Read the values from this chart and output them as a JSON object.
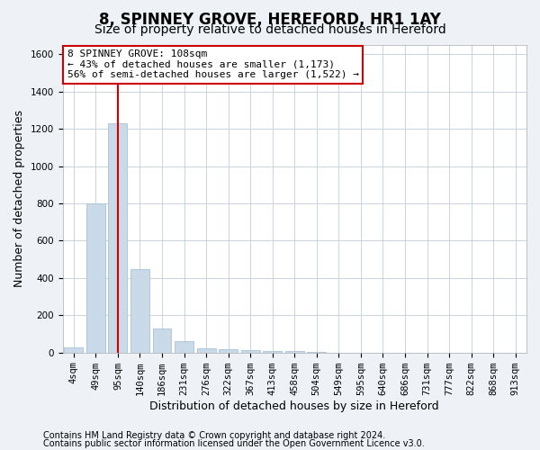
{
  "title": "8, SPINNEY GROVE, HEREFORD, HR1 1AY",
  "subtitle": "Size of property relative to detached houses in Hereford",
  "xlabel": "Distribution of detached houses by size in Hereford",
  "ylabel": "Number of detached properties",
  "categories": [
    "4sqm",
    "49sqm",
    "95sqm",
    "140sqm",
    "186sqm",
    "231sqm",
    "276sqm",
    "322sqm",
    "367sqm",
    "413sqm",
    "458sqm",
    "504sqm",
    "549sqm",
    "595sqm",
    "640sqm",
    "686sqm",
    "731sqm",
    "777sqm",
    "822sqm",
    "868sqm",
    "913sqm"
  ],
  "values": [
    30,
    800,
    1230,
    450,
    130,
    60,
    25,
    20,
    15,
    10,
    10,
    5,
    0,
    0,
    0,
    0,
    0,
    0,
    0,
    0,
    0
  ],
  "bar_color": "#c9d9e8",
  "bar_edgecolor": "#aac4d8",
  "vline_x": 2,
  "vline_color": "#cc0000",
  "annotation_line1": "8 SPINNEY GROVE: 108sqm",
  "annotation_line2": "← 43% of detached houses are smaller (1,173)",
  "annotation_line3": "56% of semi-detached houses are larger (1,522) →",
  "annotation_box_color": "#ffffff",
  "annotation_box_edgecolor": "#cc0000",
  "ylim": [
    0,
    1650
  ],
  "yticks": [
    0,
    200,
    400,
    600,
    800,
    1000,
    1200,
    1400,
    1600
  ],
  "footer1": "Contains HM Land Registry data © Crown copyright and database right 2024.",
  "footer2": "Contains public sector information licensed under the Open Government Licence v3.0.",
  "bg_color": "#eef2f7",
  "plot_bg_color": "#ffffff",
  "grid_color": "#c8d4e0",
  "title_fontsize": 12,
  "subtitle_fontsize": 10,
  "label_fontsize": 9,
  "tick_fontsize": 7.5,
  "annot_fontsize": 8,
  "footer_fontsize": 7
}
